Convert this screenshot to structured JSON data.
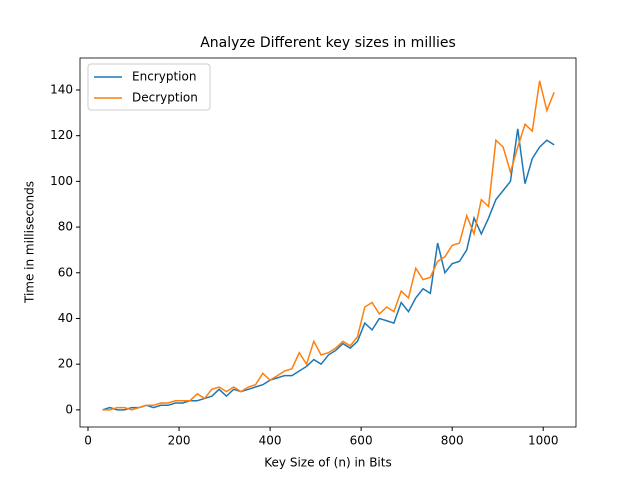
{
  "chart_data": {
    "type": "line",
    "title": "Analyze Different key sizes in millies",
    "xlabel": "Key Size of (n) in Bits",
    "ylabel": "Time in milliseconds",
    "x": [
      32,
      48,
      64,
      80,
      96,
      112,
      128,
      144,
      160,
      176,
      192,
      208,
      224,
      240,
      256,
      272,
      288,
      304,
      320,
      336,
      352,
      368,
      384,
      400,
      416,
      432,
      448,
      464,
      480,
      496,
      512,
      528,
      544,
      560,
      576,
      592,
      608,
      624,
      640,
      656,
      672,
      688,
      704,
      720,
      736,
      752,
      768,
      784,
      800,
      816,
      832,
      848,
      864,
      880,
      896,
      912,
      928,
      944,
      960,
      976,
      992,
      1008,
      1024
    ],
    "series": [
      {
        "name": "Encryption",
        "color": "#1f77b4",
        "values": [
          0,
          1,
          0,
          0,
          1,
          1,
          2,
          1,
          2,
          2,
          3,
          3,
          4,
          4,
          5,
          6,
          9,
          6,
          9,
          8,
          9,
          10,
          11,
          13,
          14,
          15,
          15,
          17,
          19,
          22,
          20,
          24,
          26,
          29,
          27,
          30,
          38,
          35,
          40,
          39,
          38,
          47,
          43,
          49,
          53,
          51,
          73,
          60,
          64,
          65,
          70,
          84,
          77,
          84,
          92,
          96,
          100,
          123,
          99,
          110,
          115,
          118,
          116
        ]
      },
      {
        "name": "Decryption",
        "color": "#ff7f0e",
        "values": [
          0,
          0,
          1,
          1,
          0,
          1,
          2,
          2,
          3,
          3,
          4,
          4,
          4,
          7,
          5,
          9,
          10,
          8,
          10,
          8,
          10,
          11,
          16,
          13,
          15,
          17,
          18,
          25,
          20,
          30,
          24,
          25,
          27,
          30,
          28,
          32,
          45,
          47,
          42,
          45,
          43,
          52,
          49,
          62,
          57,
          58,
          65,
          67,
          72,
          73,
          85,
          77,
          92,
          89,
          118,
          115,
          104,
          115,
          125,
          122,
          144,
          131,
          139
        ]
      }
    ],
    "xlim": [
      -17.6,
      1072
    ],
    "ylim": [
      -7.5,
      154
    ],
    "xticks": [
      0,
      200,
      400,
      600,
      800,
      1000
    ],
    "yticks": [
      0,
      20,
      40,
      60,
      80,
      100,
      120,
      140
    ],
    "legend": "upper left"
  }
}
